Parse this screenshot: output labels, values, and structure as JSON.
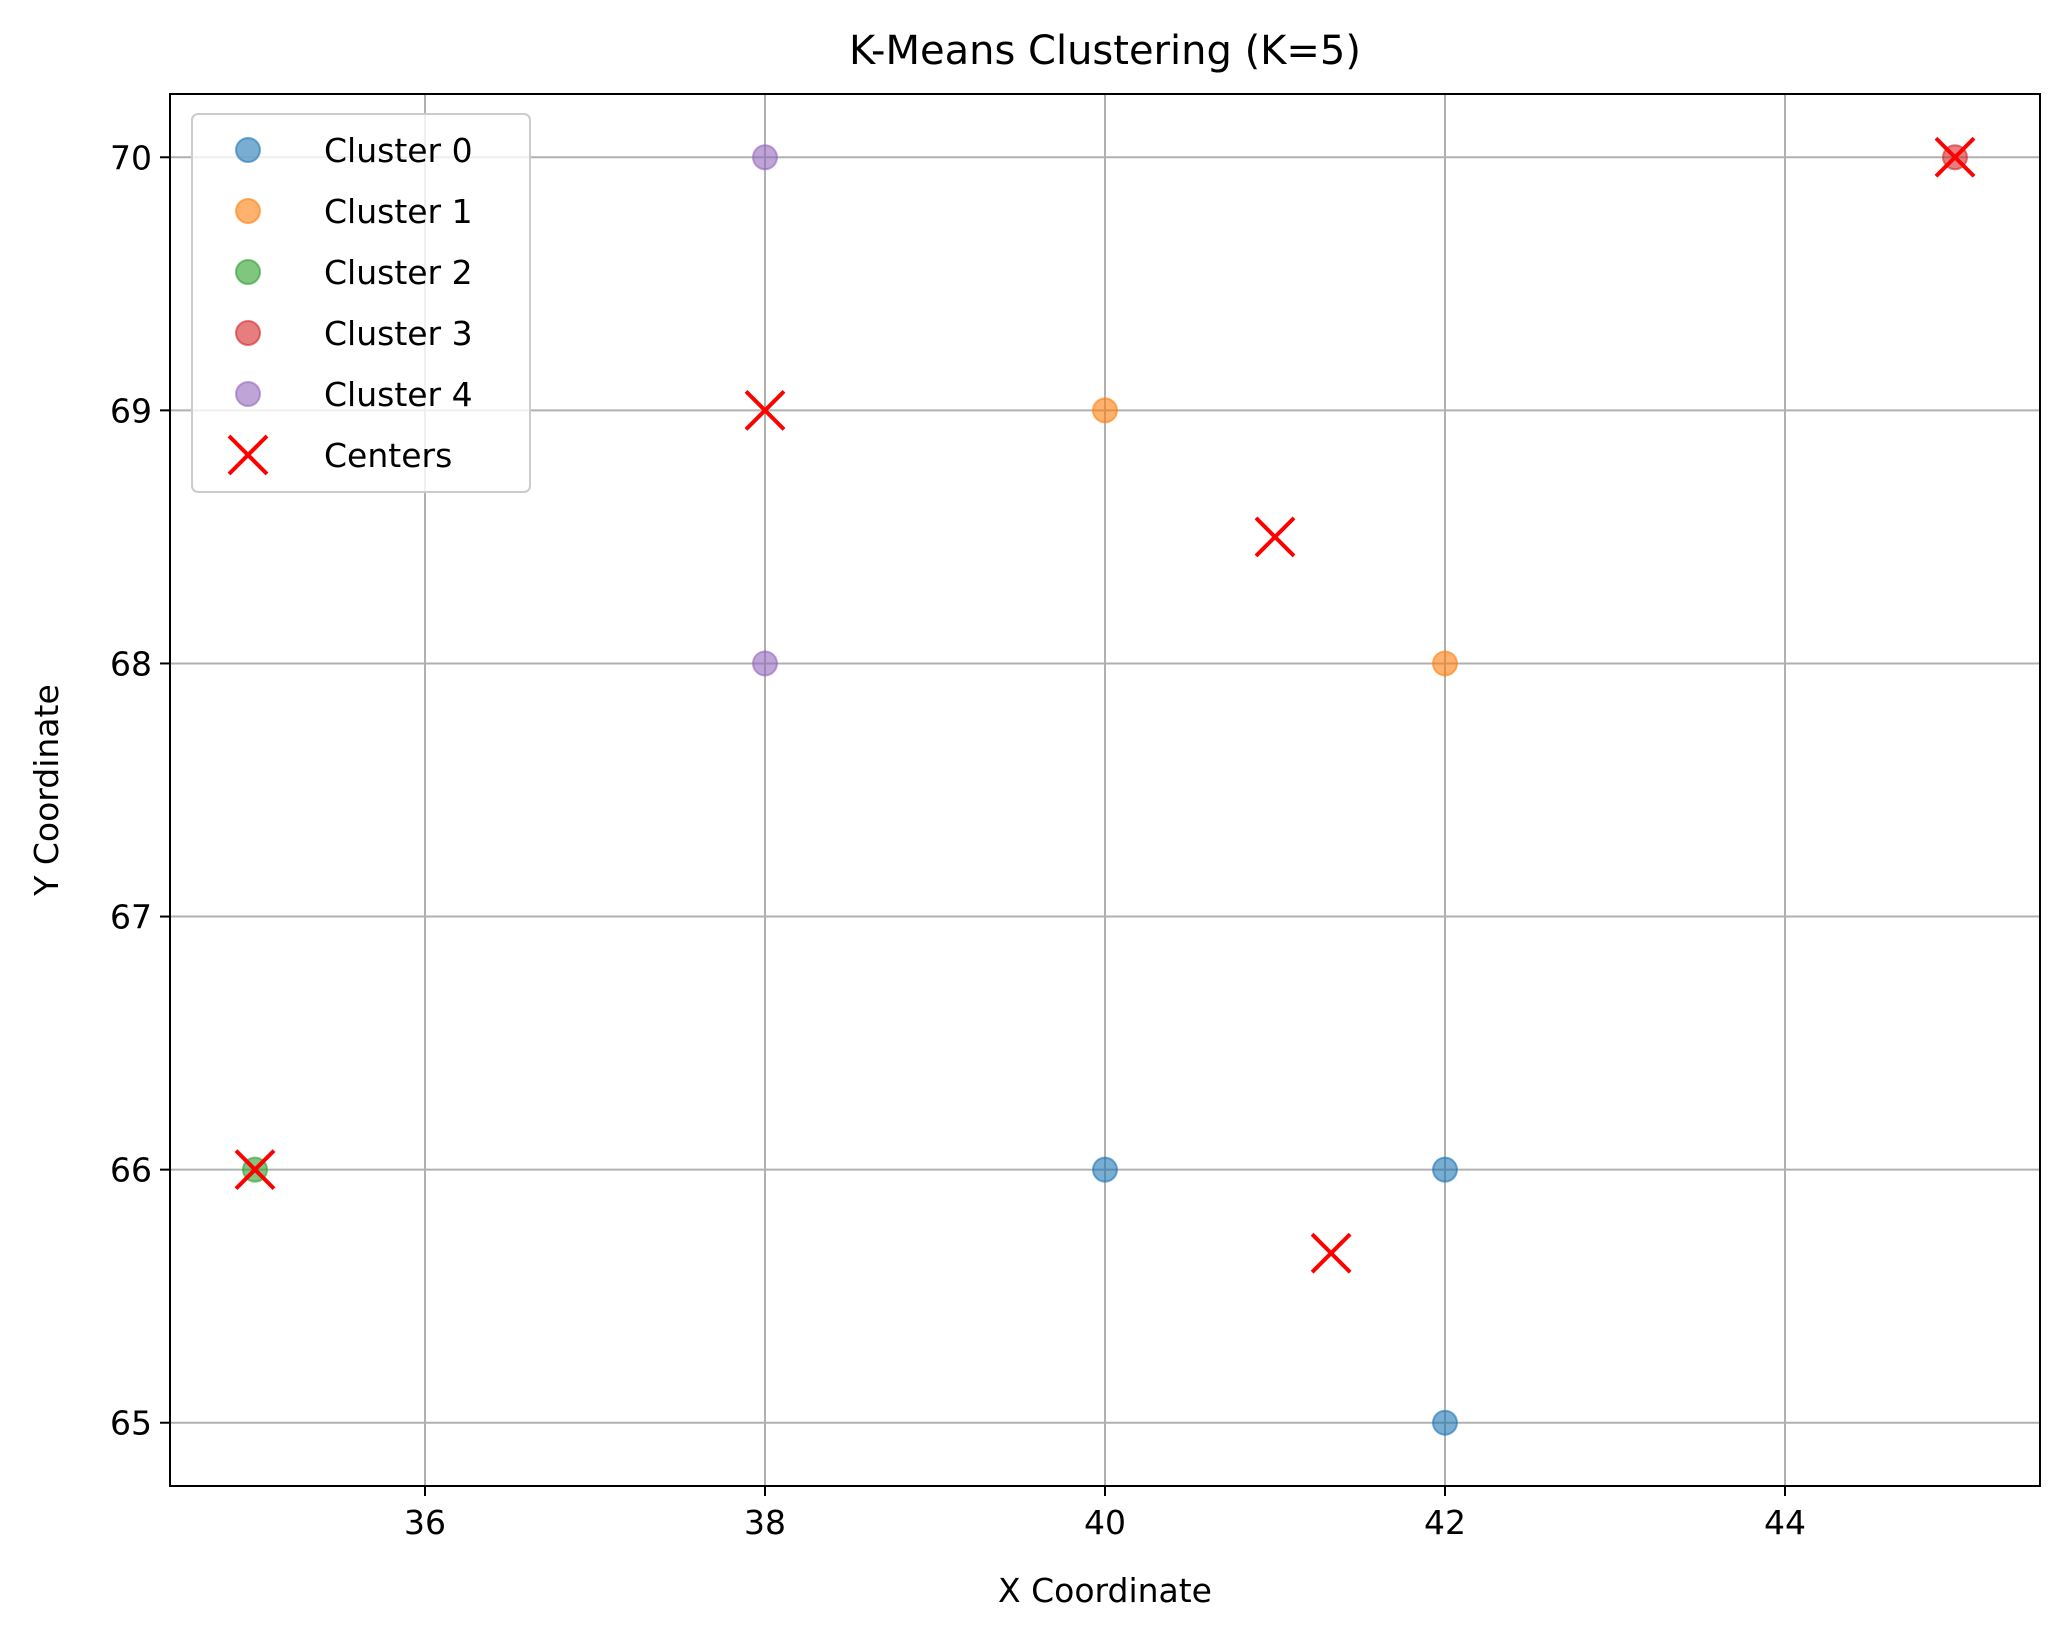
{
  "chart_data": {
    "type": "scatter",
    "title": "K-Means Clustering (K=5)",
    "xlabel": "X Coordinate",
    "ylabel": "Y Coordinate",
    "xlim": [
      34.5,
      45.5
    ],
    "ylim": [
      64.75,
      70.25
    ],
    "xticks": [
      36,
      38,
      40,
      42,
      44
    ],
    "yticks": [
      65,
      66,
      67,
      68,
      69,
      70
    ],
    "grid": true,
    "legend_position": "upper-left",
    "series": [
      {
        "name": "Cluster 0",
        "color": "#1f77b4",
        "marker": "circle",
        "points": [
          {
            "x": 40,
            "y": 66
          },
          {
            "x": 42,
            "y": 66
          },
          {
            "x": 42,
            "y": 65
          }
        ]
      },
      {
        "name": "Cluster 1",
        "color": "#ff7f0e",
        "marker": "circle",
        "points": [
          {
            "x": 40,
            "y": 69
          },
          {
            "x": 42,
            "y": 68
          }
        ]
      },
      {
        "name": "Cluster 2",
        "color": "#2ca02c",
        "marker": "circle",
        "points": [
          {
            "x": 35,
            "y": 66
          }
        ]
      },
      {
        "name": "Cluster 3",
        "color": "#d62728",
        "marker": "circle",
        "points": [
          {
            "x": 45,
            "y": 70
          }
        ]
      },
      {
        "name": "Cluster 4",
        "color": "#9467bd",
        "marker": "circle",
        "points": [
          {
            "x": 38,
            "y": 70
          },
          {
            "x": 38,
            "y": 68
          }
        ]
      },
      {
        "name": "Centers",
        "color": "#ff0000",
        "marker": "x",
        "points": [
          {
            "x": 41.33,
            "y": 65.67
          },
          {
            "x": 41,
            "y": 68.5
          },
          {
            "x": 35,
            "y": 66
          },
          {
            "x": 45,
            "y": 70
          },
          {
            "x": 38,
            "y": 69
          }
        ]
      }
    ]
  }
}
